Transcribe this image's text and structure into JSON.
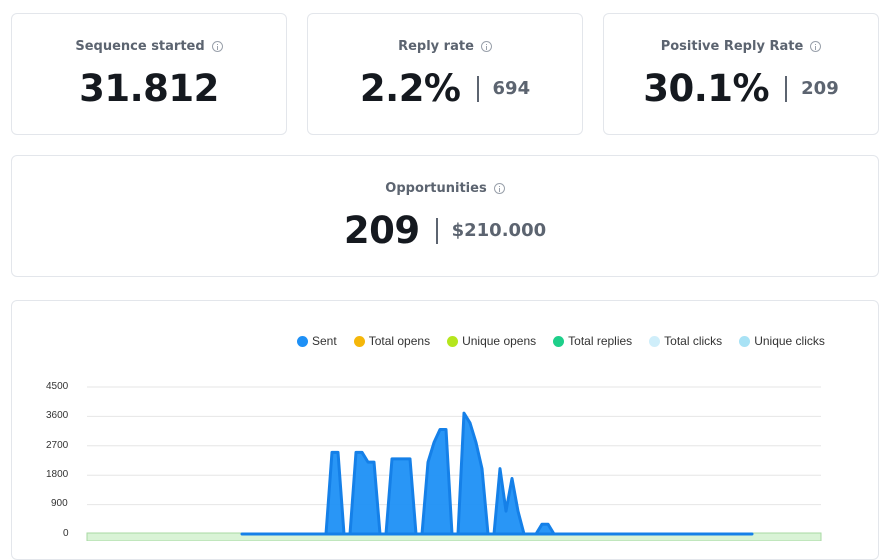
{
  "stats": {
    "sequence_started": {
      "label": "Sequence started",
      "value": "31.812"
    },
    "reply_rate": {
      "label": "Reply rate",
      "value": "2.2%",
      "sub": "694"
    },
    "positive_reply_rate": {
      "label": "Positive Reply Rate",
      "value": "30.1%",
      "sub": "209"
    },
    "opportunities": {
      "label": "Opportunities",
      "value": "209",
      "sub": "$210.000"
    }
  },
  "chart_data": {
    "type": "area",
    "legend_position": "top-right",
    "grid": true,
    "ylim": [
      0,
      4500
    ],
    "y_ticks": [
      "4500",
      "3600",
      "2700",
      "1800",
      "900",
      "0"
    ],
    "series": [
      {
        "name": "Sent",
        "color": "#1e90f6",
        "values": [
          0,
          0,
          0,
          0,
          0,
          0,
          0,
          0,
          0,
          0,
          0,
          0,
          0,
          0,
          0,
          2500,
          2500,
          0,
          0,
          2500,
          2500,
          2200,
          2200,
          0,
          0,
          2300,
          2300,
          2300,
          2300,
          0,
          0,
          2200,
          2800,
          3200,
          3200,
          0,
          0,
          3700,
          3400,
          2800,
          2000,
          0,
          0,
          2000,
          700,
          1700,
          700,
          0,
          0,
          0,
          300,
          300,
          0,
          0,
          0,
          0,
          0,
          0,
          0,
          0,
          0,
          0,
          0,
          0,
          0,
          0,
          0,
          0,
          0,
          0,
          0,
          0,
          0,
          0,
          0,
          0,
          0,
          0,
          0,
          0,
          0,
          0,
          0,
          0,
          0,
          0
        ]
      },
      {
        "name": "Total opens",
        "color": "#f5b70a"
      },
      {
        "name": "Unique opens",
        "color": "#b5e61d"
      },
      {
        "name": "Total replies",
        "color": "#1ecf8a"
      },
      {
        "name": "Total clicks",
        "color": "#cfeefa"
      },
      {
        "name": "Unique clicks",
        "color": "#a8e2f5"
      }
    ]
  }
}
